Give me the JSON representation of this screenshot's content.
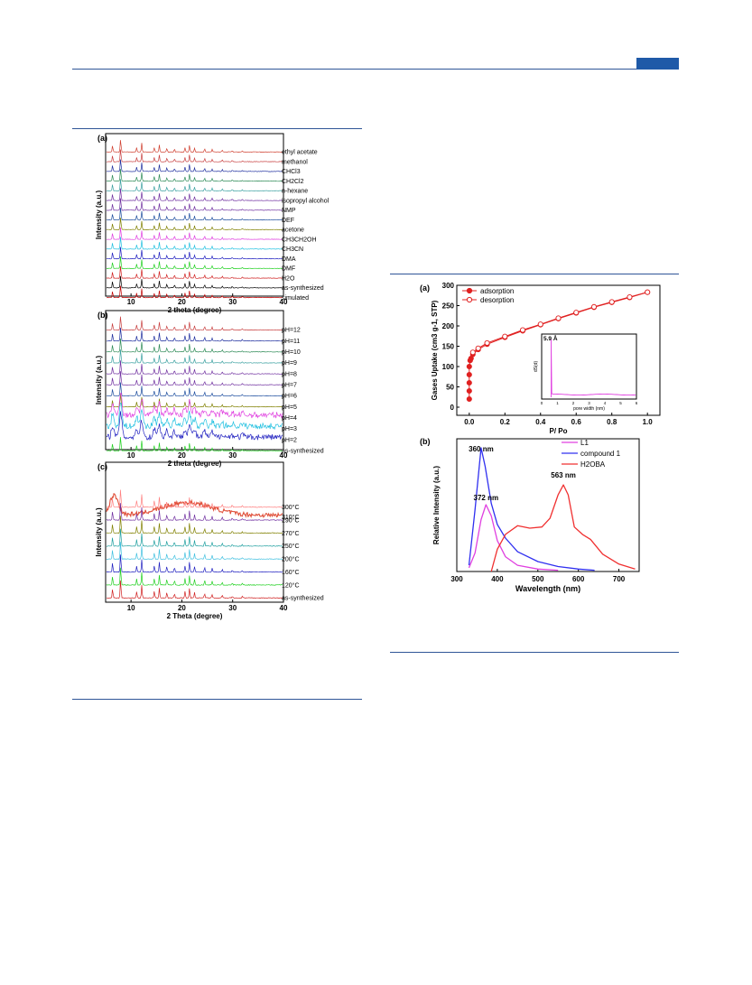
{
  "colors": {
    "rule": "#2f5597",
    "tab": "#1f5aa8"
  },
  "fig_left": {
    "a": {
      "panel": "(a)",
      "ylabel": "Intensity (a.u.)",
      "xlabel": "2 theta (degree)",
      "xticks": [
        "10",
        "20",
        "30",
        "40"
      ],
      "labels": [
        "ethyl acetate",
        "methanol",
        "CHCl3",
        "CH2Cl2",
        "n-hexane",
        "isopropyl alcohol",
        "NMP",
        "DEF",
        "acetone",
        "CH3CH2OH",
        "CH3CN",
        "DMA",
        "DMF",
        "H2O",
        "as-synthesized",
        "simulated"
      ]
    },
    "b": {
      "panel": "(b)",
      "ylabel": "Intensity (a.u.)",
      "xlabel": "2 theta (degree)",
      "xticks": [
        "10",
        "20",
        "30",
        "40"
      ],
      "labels": [
        "pH=12",
        "pH=11",
        "pH=10",
        "pH=9",
        "pH=8",
        "pH=7",
        "pH=6",
        "pH=5",
        "pH=4",
        "pH=3",
        "pH=2",
        "as-synthesized"
      ]
    },
    "c": {
      "panel": "(c)",
      "ylabel": "Intensity (a.u.)",
      "xlabel": "2 Theta (degree)",
      "xticks": [
        "10",
        "20",
        "30",
        "40"
      ],
      "labels": [
        "310°C",
        "300°C",
        "290°C",
        "270°C",
        "250°C",
        "200°C",
        "160°C",
        "120°C",
        "as-synthesized"
      ]
    }
  },
  "fig_right": {
    "a": {
      "panel": "(a)",
      "ylabel": "Gases Uptake (cm3 g-1, STP)",
      "xlabel": "P/ Po",
      "yticks": [
        "0",
        "50",
        "100",
        "150",
        "200",
        "250",
        "300"
      ],
      "xticks": [
        "0.0",
        "0.2",
        "0.4",
        "0.6",
        "0.8",
        "1.0"
      ],
      "legend": [
        "adsorption",
        "desorption"
      ],
      "inset": {
        "annotation": "5.9 Å",
        "ylabel": "dS(d)",
        "xlabel": "pore width (nm)",
        "xticks": [
          "0",
          "1",
          "2",
          "3",
          "4",
          "5",
          "6"
        ]
      }
    },
    "b": {
      "panel": "(b)",
      "ylabel": "Relative Intensity (a.u.)",
      "xlabel": "Wavelength (nm)",
      "xticks": [
        "300",
        "400",
        "500",
        "600",
        "700"
      ],
      "legend": [
        "L1",
        "compound 1",
        "H2OBA"
      ],
      "annotations": [
        "360 nm",
        "372 nm",
        "563 nm"
      ]
    }
  },
  "chart_data": [
    {
      "type": "line",
      "title": "(a)",
      "xlabel": "P/ Po",
      "ylabel": "Gases Uptake (cm3 g-1, STP)",
      "xlim": [
        0,
        1
      ],
      "ylim": [
        0,
        300
      ],
      "series": [
        {
          "name": "adsorption",
          "x": [
            0.0,
            0.0,
            0.0,
            0.0,
            0.0,
            0.005,
            0.01,
            0.02,
            0.05,
            0.1,
            0.2,
            0.3,
            0.4,
            0.5,
            0.6,
            0.7,
            0.8,
            0.9,
            1.0
          ],
          "y": [
            20,
            40,
            60,
            80,
            100,
            115,
            120,
            130,
            142,
            155,
            172,
            188,
            203,
            218,
            232,
            246,
            258,
            270,
            283
          ]
        },
        {
          "name": "desorption",
          "x": [
            1.0,
            0.9,
            0.8,
            0.7,
            0.6,
            0.5,
            0.4,
            0.3,
            0.2,
            0.1,
            0.05,
            0.02
          ],
          "y": [
            283,
            271,
            259,
            247,
            233,
            219,
            204,
            190,
            174,
            158,
            145,
            135
          ]
        }
      ]
    },
    {
      "type": "line",
      "title": "(b)",
      "xlabel": "Wavelength (nm)",
      "ylabel": "Relative Intensity (a.u.)",
      "xlim": [
        300,
        750
      ],
      "series": [
        {
          "name": "L1",
          "x": [
            330,
            345,
            360,
            372,
            385,
            400,
            420,
            450,
            500,
            550
          ],
          "y": [
            0.03,
            0.15,
            0.42,
            0.54,
            0.45,
            0.25,
            0.12,
            0.05,
            0.02,
            0.01
          ]
        },
        {
          "name": "compound 1",
          "x": [
            330,
            345,
            360,
            370,
            385,
            400,
            420,
            450,
            500,
            550,
            600,
            640
          ],
          "y": [
            0.05,
            0.5,
            1.0,
            0.85,
            0.55,
            0.38,
            0.27,
            0.16,
            0.08,
            0.04,
            0.02,
            0.01
          ]
        },
        {
          "name": "H2OBA",
          "x": [
            385,
            400,
            420,
            450,
            480,
            510,
            530,
            550,
            563,
            575,
            590,
            610,
            630,
            660,
            700,
            740
          ],
          "y": [
            0.0,
            0.18,
            0.3,
            0.37,
            0.35,
            0.36,
            0.43,
            0.62,
            0.7,
            0.62,
            0.36,
            0.3,
            0.26,
            0.14,
            0.06,
            0.02
          ]
        }
      ]
    }
  ]
}
